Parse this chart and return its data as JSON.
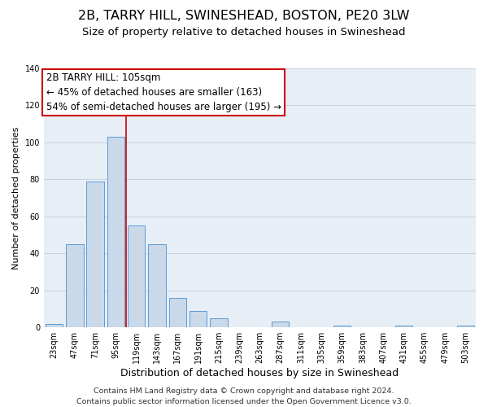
{
  "title": "2B, TARRY HILL, SWINESHEAD, BOSTON, PE20 3LW",
  "subtitle": "Size of property relative to detached houses in Swineshead",
  "xlabel": "Distribution of detached houses by size in Swineshead",
  "ylabel": "Number of detached properties",
  "footer_line1": "Contains HM Land Registry data © Crown copyright and database right 2024.",
  "footer_line2": "Contains public sector information licensed under the Open Government Licence v3.0.",
  "bin_labels": [
    "23sqm",
    "47sqm",
    "71sqm",
    "95sqm",
    "119sqm",
    "143sqm",
    "167sqm",
    "191sqm",
    "215sqm",
    "239sqm",
    "263sqm",
    "287sqm",
    "311sqm",
    "335sqm",
    "359sqm",
    "383sqm",
    "407sqm",
    "431sqm",
    "455sqm",
    "479sqm",
    "503sqm"
  ],
  "bar_values": [
    2,
    45,
    79,
    103,
    55,
    45,
    16,
    9,
    5,
    0,
    0,
    3,
    0,
    0,
    1,
    0,
    0,
    1,
    0,
    0,
    1
  ],
  "bar_color": "#c9d9ea",
  "bar_edgecolor": "#5b9bd5",
  "grid_color": "#c8d4e4",
  "plot_bg_color": "#e8eef6",
  "annotation_text_line1": "2B TARRY HILL: 105sqm",
  "annotation_text_line2": "← 45% of detached houses are smaller (163)",
  "annotation_text_line3": "54% of semi-detached houses are larger (195) →",
  "annotation_box_edgecolor": "#cc0000",
  "vertical_line_color": "#cc0000",
  "vertical_line_x": 3.5,
  "ylim": [
    0,
    140
  ],
  "yticks": [
    0,
    20,
    40,
    60,
    80,
    100,
    120,
    140
  ],
  "title_fontsize": 11.5,
  "subtitle_fontsize": 9.5,
  "xlabel_fontsize": 9,
  "ylabel_fontsize": 8,
  "tick_fontsize": 7,
  "footer_fontsize": 6.8,
  "annotation_fontsize": 8.5
}
